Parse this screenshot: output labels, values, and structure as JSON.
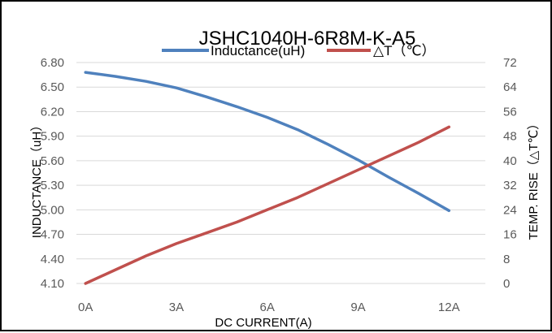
{
  "chart_data": {
    "type": "line",
    "title": "JSHC1040H-6R8M-K-A5",
    "xlabel": "DC  CURRENT(A)",
    "ylabel_left": "INDUCTANCE（uH）",
    "ylabel_right": "TEMP.  RISE（△T℃）",
    "categories": [
      "0A",
      "3A",
      "6A",
      "9A",
      "12A"
    ],
    "x": [
      0,
      3,
      6,
      9,
      12
    ],
    "xlim": [
      -0.3,
      13.2
    ],
    "y_left_lim": [
      4.1,
      6.8
    ],
    "y_left_ticks": [
      "6.80",
      "6.50",
      "6.20",
      "5.90",
      "5.60",
      "5.30",
      "5.00",
      "4.70",
      "4.40",
      "4.10"
    ],
    "y_right_lim": [
      0,
      72
    ],
    "y_right_ticks": [
      "72",
      "64",
      "56",
      "48",
      "40",
      "32",
      "24",
      "16",
      "8",
      "0"
    ],
    "grid": "horizontal",
    "legend_position": "top",
    "series": [
      {
        "name": "Inductance(uH)",
        "axis": "left",
        "color": "#4f81bd",
        "x": [
          0,
          1,
          2,
          3,
          4,
          5,
          6,
          7,
          8,
          9,
          10,
          11,
          12
        ],
        "values": [
          6.68,
          6.63,
          6.57,
          6.49,
          6.38,
          6.26,
          6.13,
          5.98,
          5.8,
          5.61,
          5.4,
          5.2,
          4.99
        ]
      },
      {
        "name": "△T（℃）",
        "axis": "right",
        "color": "#c0504d",
        "x": [
          0,
          1,
          2,
          3,
          4,
          5,
          6,
          7,
          8,
          9,
          10,
          11,
          12
        ],
        "values": [
          0,
          4.5,
          9,
          13,
          16.5,
          20,
          24,
          28,
          32.5,
          37,
          41.5,
          46,
          51
        ]
      }
    ]
  }
}
